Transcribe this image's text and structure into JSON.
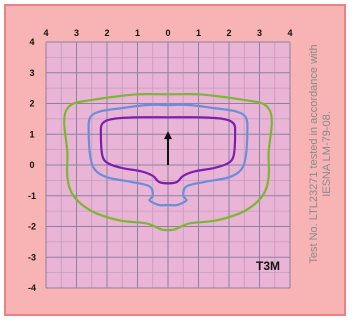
{
  "chart_data": {
    "type": "line",
    "x_ticks": [
      "4",
      "3",
      "2",
      "1",
      "0",
      "1",
      "2",
      "3",
      "4"
    ],
    "y_ticks": [
      "4",
      "3",
      "2",
      "1",
      "0",
      "-1",
      "-2",
      "-3",
      "-4"
    ],
    "xlim": [
      -4,
      4
    ],
    "ylim": [
      -4,
      4
    ],
    "grid": true,
    "label_code": "T3M",
    "note_line1": "Test No. LTL23271 tested in accordance with",
    "note_line2": "IESNA LM-79-08.",
    "series": [
      {
        "color": "#7ab830",
        "points": [
          [
            -3.4,
            1.3
          ],
          [
            -3.35,
            1.75
          ],
          [
            -3.1,
            2.0
          ],
          [
            -2.6,
            2.1
          ],
          [
            -1.9,
            2.2
          ],
          [
            -1.0,
            2.3
          ],
          [
            0,
            2.3
          ],
          [
            1.0,
            2.3
          ],
          [
            1.9,
            2.2
          ],
          [
            2.6,
            2.1
          ],
          [
            3.1,
            2.0
          ],
          [
            3.35,
            1.75
          ],
          [
            3.4,
            1.3
          ],
          [
            3.3,
            0.4
          ],
          [
            3.3,
            -0.4
          ],
          [
            3.1,
            -1.0
          ],
          [
            2.5,
            -1.5
          ],
          [
            1.6,
            -1.8
          ],
          [
            0.7,
            -1.9
          ],
          [
            0.2,
            -2.1
          ],
          [
            -0.2,
            -2.1
          ],
          [
            -0.7,
            -1.9
          ],
          [
            -1.6,
            -1.8
          ],
          [
            -2.5,
            -1.5
          ],
          [
            -3.1,
            -1.0
          ],
          [
            -3.3,
            -0.4
          ],
          [
            -3.3,
            0.4
          ],
          [
            -3.4,
            1.3
          ]
        ]
      },
      {
        "color": "#6a8fd8",
        "points": [
          [
            -2.6,
            1.1
          ],
          [
            -2.55,
            1.55
          ],
          [
            -2.2,
            1.75
          ],
          [
            -1.5,
            1.85
          ],
          [
            -0.7,
            1.95
          ],
          [
            0,
            1.95
          ],
          [
            0.7,
            1.95
          ],
          [
            1.5,
            1.85
          ],
          [
            2.2,
            1.75
          ],
          [
            2.55,
            1.55
          ],
          [
            2.6,
            1.1
          ],
          [
            2.55,
            0.3
          ],
          [
            2.4,
            -0.15
          ],
          [
            2.0,
            -0.4
          ],
          [
            1.2,
            -0.55
          ],
          [
            0.6,
            -0.7
          ],
          [
            0.5,
            -1.0
          ],
          [
            0.6,
            -1.15
          ],
          [
            0.3,
            -1.3
          ],
          [
            0,
            -1.3
          ],
          [
            -0.3,
            -1.3
          ],
          [
            -0.6,
            -1.15
          ],
          [
            -0.5,
            -1.0
          ],
          [
            -0.6,
            -0.7
          ],
          [
            -1.2,
            -0.55
          ],
          [
            -2.0,
            -0.4
          ],
          [
            -2.4,
            -0.15
          ],
          [
            -2.55,
            0.3
          ],
          [
            -2.6,
            1.1
          ]
        ]
      },
      {
        "color": "#7b1fb0",
        "points": [
          [
            -2.2,
            1.0
          ],
          [
            -2.15,
            1.35
          ],
          [
            -1.8,
            1.5
          ],
          [
            -1.0,
            1.55
          ],
          [
            0,
            1.55
          ],
          [
            1.0,
            1.55
          ],
          [
            1.8,
            1.5
          ],
          [
            2.15,
            1.35
          ],
          [
            2.2,
            1.0
          ],
          [
            2.15,
            0.3
          ],
          [
            1.95,
            0.05
          ],
          [
            1.5,
            -0.1
          ],
          [
            0.9,
            -0.2
          ],
          [
            0.5,
            -0.35
          ],
          [
            0.3,
            -0.55
          ],
          [
            0,
            -0.6
          ],
          [
            -0.3,
            -0.55
          ],
          [
            -0.5,
            -0.35
          ],
          [
            -0.9,
            -0.2
          ],
          [
            -1.5,
            -0.1
          ],
          [
            -1.95,
            0.05
          ],
          [
            -2.15,
            0.3
          ],
          [
            -2.2,
            1.0
          ]
        ]
      }
    ],
    "arrow": {
      "from": [
        0,
        0
      ],
      "to": [
        0,
        1.1
      ]
    }
  }
}
